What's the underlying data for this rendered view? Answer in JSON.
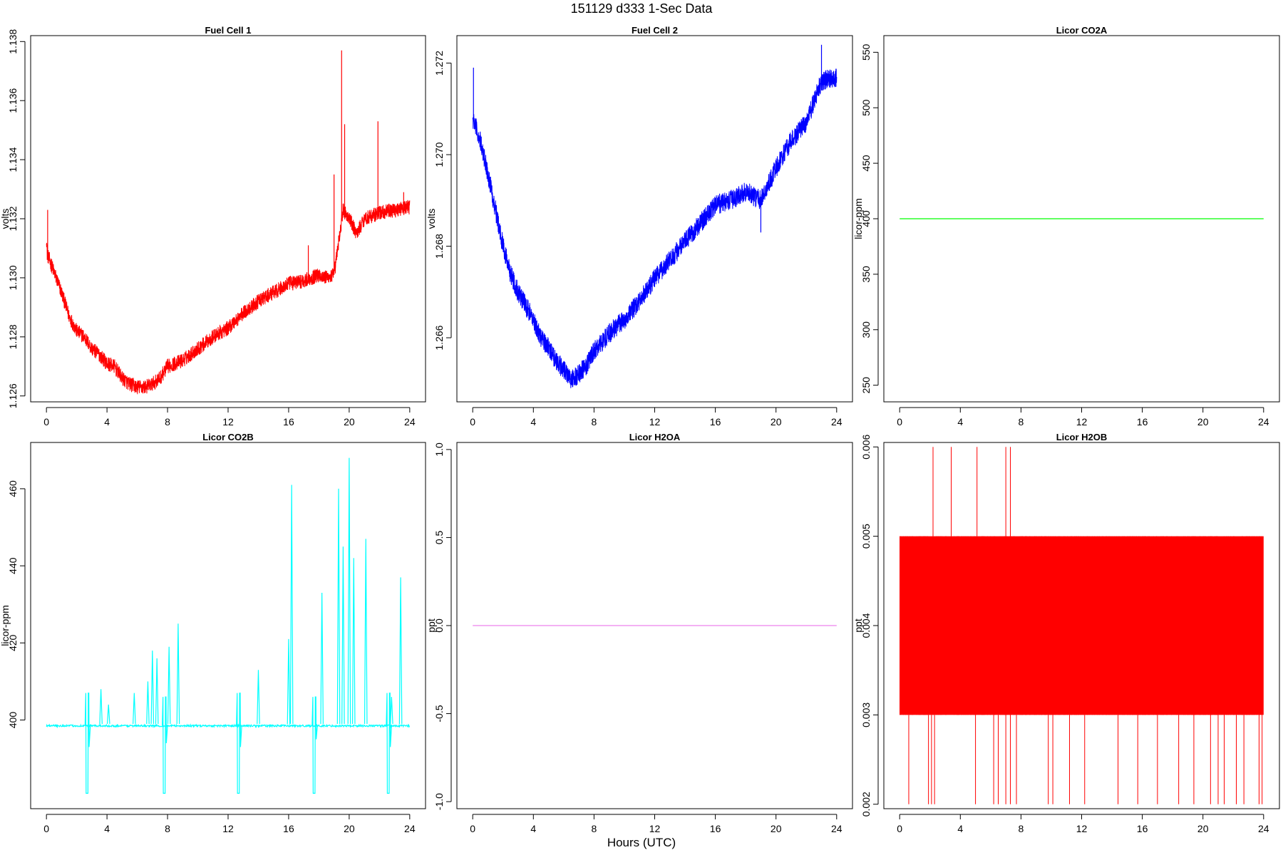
{
  "figure": {
    "title": "151129   d333   1-Sec Data",
    "xlabel": "Hours (UTC)"
  },
  "chart_data": [
    {
      "type": "line",
      "title": "Fuel Cell 1",
      "ylabel": "volts",
      "color": "#ff0000",
      "xlim": [
        0,
        24
      ],
      "ylim": [
        1.1258,
        1.1382
      ],
      "xticks": [
        0,
        4,
        8,
        12,
        16,
        20,
        24
      ],
      "yticks": [
        "1.126",
        "1.128",
        "1.130",
        "1.132",
        "1.134",
        "1.136",
        "1.138"
      ],
      "noise": 0.00025,
      "x": [
        0,
        0.05,
        0.5,
        1,
        1.5,
        2,
        2.5,
        3,
        3.5,
        4,
        4.5,
        5,
        5.5,
        6,
        6.5,
        7,
        7.5,
        8,
        9,
        10,
        11,
        12,
        13,
        14,
        15,
        16,
        17,
        18,
        18.5,
        19,
        19.3,
        19.6,
        20,
        20.5,
        21,
        22,
        23,
        24
      ],
      "y": [
        1.1314,
        1.1308,
        1.1302,
        1.1295,
        1.1287,
        1.1282,
        1.128,
        1.1276,
        1.1274,
        1.1271,
        1.127,
        1.1266,
        1.1264,
        1.1263,
        1.1263,
        1.1264,
        1.1266,
        1.127,
        1.1272,
        1.1276,
        1.128,
        1.1283,
        1.1288,
        1.1292,
        1.1295,
        1.1298,
        1.1299,
        1.1301,
        1.13,
        1.1301,
        1.1312,
        1.1323,
        1.132,
        1.1315,
        1.132,
        1.1322,
        1.1323,
        1.1324
      ],
      "spikes": [
        [
          0.08,
          1.1323
        ],
        [
          17.3,
          1.1311
        ],
        [
          19.0,
          1.1335
        ],
        [
          19.5,
          1.1377
        ],
        [
          19.7,
          1.1352
        ],
        [
          21.9,
          1.1353
        ],
        [
          23.6,
          1.1329
        ]
      ]
    },
    {
      "type": "line",
      "title": "Fuel Cell 2",
      "ylabel": "volts",
      "color": "#0000ff",
      "xlim": [
        0,
        24
      ],
      "ylim": [
        1.2646,
        1.2726
      ],
      "xticks": [
        0,
        4,
        8,
        12,
        16,
        20,
        24
      ],
      "yticks": [
        "1.266",
        "1.268",
        "1.270",
        "1.272"
      ],
      "noise": 0.00022,
      "x": [
        0,
        0.1,
        0.5,
        1,
        1.5,
        2,
        2.5,
        3,
        3.5,
        4,
        4.5,
        5,
        5.5,
        6,
        6.5,
        7,
        7.5,
        8,
        9,
        10,
        11,
        12,
        13,
        14,
        15,
        16,
        17,
        18,
        19,
        20,
        21,
        22,
        23,
        24
      ],
      "y": [
        1.2708,
        1.2707,
        1.2703,
        1.2696,
        1.2688,
        1.268,
        1.2674,
        1.267,
        1.2667,
        1.2664,
        1.266,
        1.2658,
        1.2655,
        1.2653,
        1.2651,
        1.2652,
        1.2654,
        1.2657,
        1.2661,
        1.2664,
        1.2668,
        1.2673,
        1.2677,
        1.2681,
        1.2685,
        1.2689,
        1.269,
        1.2692,
        1.269,
        1.2697,
        1.2703,
        1.2707,
        1.2716,
        1.2717
      ],
      "spikes": [
        [
          0.05,
          1.2719
        ],
        [
          23.0,
          1.2724
        ],
        [
          19.0,
          1.2683
        ]
      ]
    },
    {
      "type": "line",
      "title": "Licor CO2A",
      "ylabel": "licor-ppm",
      "color": "#00ff00",
      "xlim": [
        0,
        24
      ],
      "ylim": [
        235,
        565
      ],
      "xticks": [
        0,
        4,
        8,
        12,
        16,
        20,
        24
      ],
      "yticks": [
        "250",
        "300",
        "350",
        "400",
        "450",
        "500",
        "550"
      ],
      "noise": 0,
      "x": [
        0,
        24
      ],
      "y": [
        400,
        400
      ],
      "spikes": []
    },
    {
      "type": "line",
      "title": "Licor CO2B",
      "ylabel": "licor-ppm",
      "color": "#00ffff",
      "xlim": [
        0,
        24
      ],
      "ylim": [
        377,
        472
      ],
      "xticks": [
        0,
        4,
        8,
        12,
        16,
        20,
        24
      ],
      "yticks": [
        "400",
        "420",
        "440",
        "460"
      ],
      "noise": 0.25,
      "x": [
        0,
        24
      ],
      "y": [
        398.5,
        398.5
      ],
      "spikes": [
        [
          3.6,
          408
        ],
        [
          4.1,
          404
        ],
        [
          5.8,
          407
        ],
        [
          6.7,
          410
        ],
        [
          7.0,
          418
        ],
        [
          7.3,
          416
        ],
        [
          8.1,
          419
        ],
        [
          8.7,
          425
        ],
        [
          14.0,
          413
        ],
        [
          16.0,
          421
        ],
        [
          16.2,
          461
        ],
        [
          18.2,
          433
        ],
        [
          19.3,
          460
        ],
        [
          19.6,
          445
        ],
        [
          20.0,
          468
        ],
        [
          20.3,
          442
        ],
        [
          21.1,
          447
        ],
        [
          22.8,
          406
        ],
        [
          23.4,
          437
        ]
      ],
      "dips": [
        [
          2.6,
          2.8,
          407,
          381,
          393
        ],
        [
          7.7,
          7.9,
          406,
          381,
          394
        ],
        [
          12.6,
          12.8,
          407,
          381,
          393
        ],
        [
          17.6,
          17.8,
          406,
          381,
          395
        ],
        [
          22.5,
          22.7,
          407,
          381,
          393
        ]
      ]
    },
    {
      "type": "line",
      "title": "Licor H2OA",
      "ylabel": "ppt",
      "color": "#ee82ee",
      "xlim": [
        0,
        24
      ],
      "ylim": [
        -1.04,
        1.04
      ],
      "xticks": [
        0,
        4,
        8,
        12,
        16,
        20,
        24
      ],
      "yticks": [
        "-1.0",
        "-0.5",
        "0.0",
        "0.5",
        "1.0"
      ],
      "noise": 0,
      "x": [
        0,
        24
      ],
      "y": [
        0,
        0
      ],
      "spikes": []
    },
    {
      "type": "line",
      "title": "Licor H2OB",
      "ylabel": "ppt",
      "color": "#ff0000",
      "xlim": [
        0,
        24
      ],
      "ylim": [
        0.00195,
        0.00605
      ],
      "xticks": [
        0,
        4,
        8,
        12,
        16,
        20,
        24
      ],
      "yticks": [
        "0.002",
        "0.003",
        "0.004",
        "0.005",
        "0.006"
      ],
      "band": [
        0.003,
        0.005
      ],
      "spikes": [
        [
          2.2,
          0.006
        ],
        [
          3.4,
          0.006
        ],
        [
          5.1,
          0.006
        ],
        [
          7.0,
          0.006
        ],
        [
          7.3,
          0.006
        ]
      ],
      "dips": [
        0.6,
        1.9,
        2.1,
        2.3,
        5.0,
        6.2,
        6.5,
        7.0,
        7.3,
        7.7,
        9.8,
        10.1,
        11.2,
        12.2,
        14.4,
        15.7,
        17.0,
        18.4,
        19.4,
        20.5,
        21.0,
        21.4,
        22.2,
        22.7,
        23.7,
        23.9
      ]
    }
  ]
}
